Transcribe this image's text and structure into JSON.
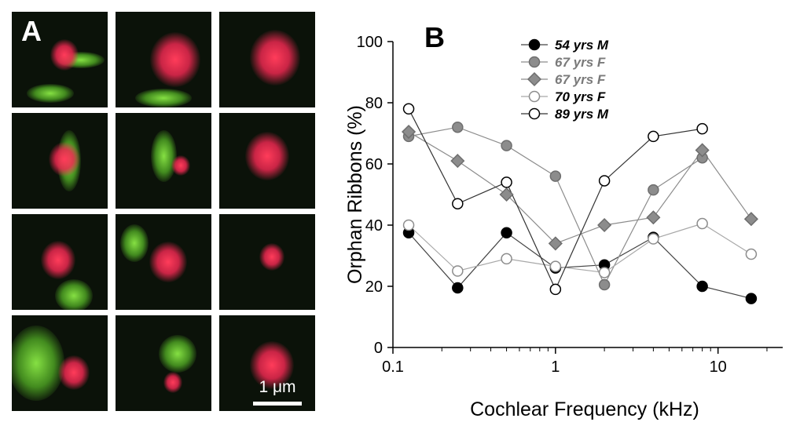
{
  "panel_a": {
    "label": "A",
    "scale_bar_label": "1 μm",
    "tiles": [
      {
        "red": [
          0.55,
          0.45,
          0.9
        ],
        "green": [
          [
            0.72,
            0.5,
            1.0,
            0.35
          ],
          [
            0.4,
            0.85,
            1.0,
            0.4
          ]
        ]
      },
      {
        "red": [
          0.62,
          0.5,
          1.6
        ],
        "green": [
          [
            0.5,
            0.9,
            1.2,
            0.4
          ]
        ]
      },
      {
        "red": [
          0.58,
          0.48,
          1.6
        ],
        "green": []
      },
      {
        "red": [
          0.55,
          0.48,
          1.0
        ],
        "green": [
          [
            0.6,
            0.5,
            0.5,
            1.3
          ]
        ]
      },
      {
        "red": [
          0.68,
          0.55,
          0.6
        ],
        "green": [
          [
            0.5,
            0.45,
            0.55,
            1.1
          ]
        ]
      },
      {
        "red": [
          0.5,
          0.45,
          1.4
        ],
        "green": []
      },
      {
        "red": [
          0.48,
          0.48,
          1.1
        ],
        "green": [
          [
            0.65,
            0.85,
            0.8,
            0.7
          ]
        ]
      },
      {
        "red": [
          0.55,
          0.5,
          1.2
        ],
        "green": [
          [
            0.2,
            0.3,
            0.6,
            0.8
          ]
        ]
      },
      {
        "red": [
          0.55,
          0.45,
          0.8
        ],
        "green": []
      },
      {
        "red": [
          0.65,
          0.6,
          1.0
        ],
        "green": [
          [
            0.25,
            0.5,
            1.2,
            1.6
          ]
        ]
      },
      {
        "red": [
          0.6,
          0.7,
          0.6
        ],
        "green": [
          [
            0.65,
            0.4,
            0.8,
            0.8
          ]
        ]
      },
      {
        "red": [
          0.55,
          0.52,
          1.4
        ],
        "green": []
      }
    ]
  },
  "panel_b": {
    "label": "B"
  },
  "chart_data": {
    "type": "line",
    "xlabel": "Cochlear Frequency (kHz)",
    "ylabel": "Orphan Ribbons (%)",
    "x_scale": "log",
    "xlim": [
      0.1,
      25
    ],
    "ylim": [
      0,
      100
    ],
    "x_ticks": [
      0.1,
      1,
      10
    ],
    "x_tick_labels": [
      "0.1",
      "1",
      "10"
    ],
    "y_ticks": [
      0,
      20,
      40,
      60,
      80,
      100
    ],
    "y_tick_labels": [
      "0",
      "20",
      "40",
      "60",
      "80",
      "100"
    ],
    "legend_position": "top-center",
    "x": [
      0.125,
      0.25,
      0.5,
      1,
      2,
      4,
      8,
      16
    ],
    "series": [
      {
        "name": "54 yrs M",
        "marker": "circle",
        "fill": "#000000",
        "stroke": "#000000",
        "line": "#444444",
        "label_color": "#000000",
        "values": [
          37.5,
          19.5,
          37.5,
          26,
          27,
          36,
          20,
          16
        ]
      },
      {
        "name": "67 yrs F",
        "marker": "circle",
        "fill": "#8c8c8c",
        "stroke": "#6e6e6e",
        "line": "#8c8c8c",
        "label_color": "#7a7a7a",
        "values": [
          69,
          72,
          66,
          56,
          20.5,
          51.5,
          62,
          null
        ]
      },
      {
        "name": "67 yrs F",
        "marker": "diamond",
        "fill": "#8c8c8c",
        "stroke": "#6e6e6e",
        "line": "#8c8c8c",
        "label_color": "#7a7a7a",
        "values": [
          70.5,
          61,
          50,
          34,
          40,
          42.5,
          64.5,
          42
        ]
      },
      {
        "name": "70 yrs F",
        "marker": "circle",
        "fill": "#ffffff",
        "stroke": "#8c8c8c",
        "line": "#a8a8a8",
        "label_color": "#000000",
        "values": [
          40,
          25,
          29,
          26.5,
          24.5,
          35.5,
          40.5,
          30.5
        ]
      },
      {
        "name": "89 yrs M",
        "marker": "circle",
        "fill": "#ffffff",
        "stroke": "#000000",
        "line": "#333333",
        "label_color": "#000000",
        "values": [
          78,
          47,
          54,
          19,
          54.5,
          69,
          71.5,
          null
        ]
      }
    ]
  }
}
